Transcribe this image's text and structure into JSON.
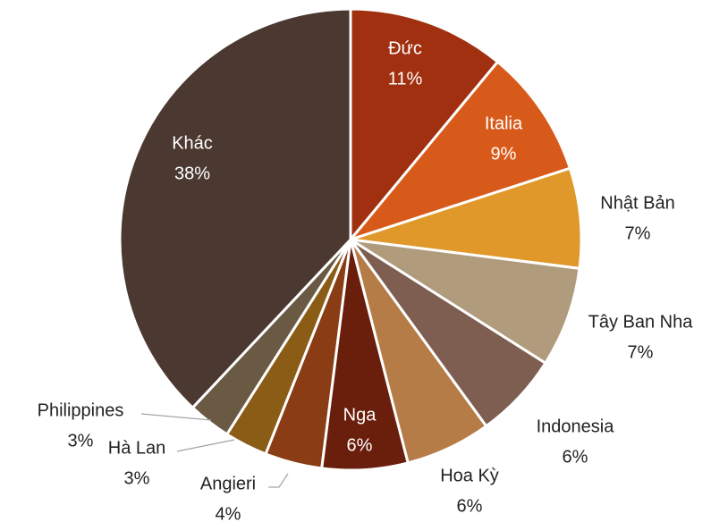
{
  "chart_data": {
    "type": "pie",
    "categories": [
      "Đức",
      "Italia",
      "Nhật Bản",
      "Tây Ban Nha",
      "Indonesia",
      "Hoa Kỳ",
      "Nga",
      "Angieri",
      "Hà Lan",
      "Philippines",
      "Khác"
    ],
    "values": [
      11,
      9,
      7,
      7,
      6,
      6,
      6,
      4,
      3,
      3,
      38
    ],
    "value_labels": [
      "11%",
      "9%",
      "7%",
      "7%",
      "6%",
      "6%",
      "6%",
      "4%",
      "3%",
      "3%",
      "38%"
    ],
    "colors": [
      "#a0300f",
      "#d85a1a",
      "#e0982a",
      "#b09c7c",
      "#7e5e50",
      "#b57c48",
      "#6a1e0c",
      "#8a3c14",
      "#8a5c16",
      "#6a5a44",
      "#4b3830"
    ]
  }
}
